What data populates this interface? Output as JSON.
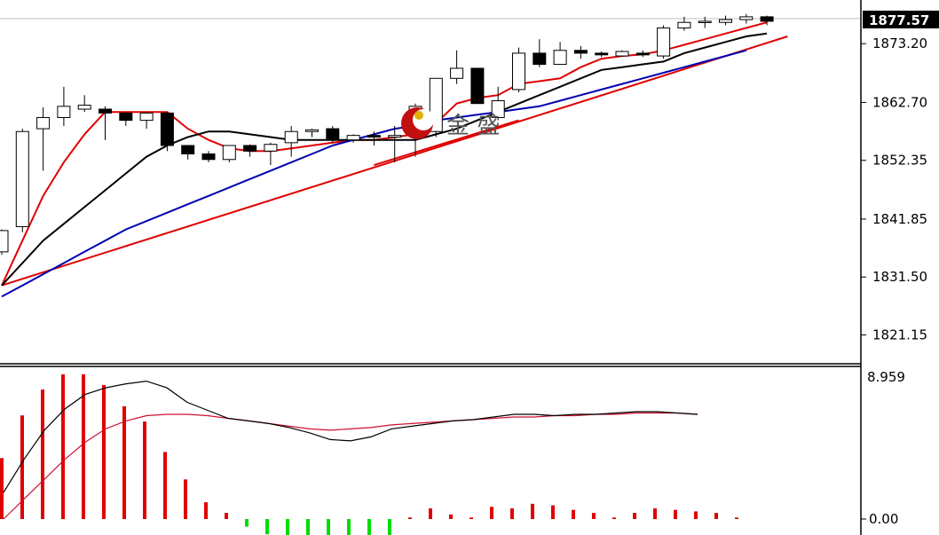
{
  "chart_data": [
    {
      "type": "candlestick",
      "y_ticks": [
        1873.2,
        1862.7,
        1852.35,
        1841.85,
        1831.5,
        1821.15
      ],
      "ylim": [
        1816.0,
        1881.0
      ],
      "last_price": 1877.57,
      "last_price_label": "1877.57",
      "candles": [
        {
          "o": 1836.0,
          "h": 1840.0,
          "c": 1839.8,
          "l": 1835.5
        },
        {
          "o": 1840.5,
          "h": 1858.0,
          "c": 1857.5,
          "l": 1839.5
        },
        {
          "o": 1858.0,
          "h": 1861.8,
          "c": 1860.0,
          "l": 1850.5
        },
        {
          "o": 1860.0,
          "h": 1865.5,
          "c": 1862.0,
          "l": 1858.5
        },
        {
          "o": 1861.5,
          "h": 1864.0,
          "c": 1862.2,
          "l": 1861.0
        },
        {
          "o": 1861.5,
          "h": 1862.0,
          "c": 1860.8,
          "l": 1856.0
        },
        {
          "o": 1860.8,
          "h": 1861.0,
          "c": 1859.5,
          "l": 1858.5
        },
        {
          "o": 1859.5,
          "h": 1861.0,
          "c": 1860.8,
          "l": 1858.0
        },
        {
          "o": 1860.8,
          "h": 1861.0,
          "c": 1855.0,
          "l": 1854.0
        },
        {
          "o": 1855.0,
          "h": 1855.0,
          "c": 1853.5,
          "l": 1852.5
        },
        {
          "o": 1853.5,
          "h": 1854.0,
          "c": 1852.5,
          "l": 1852.0
        },
        {
          "o": 1852.5,
          "h": 1855.0,
          "c": 1855.0,
          "l": 1852.0
        },
        {
          "o": 1855.0,
          "h": 1855.2,
          "c": 1854.0,
          "l": 1853.0
        },
        {
          "o": 1854.0,
          "h": 1855.5,
          "c": 1855.2,
          "l": 1851.5
        },
        {
          "o": 1855.5,
          "h": 1858.5,
          "c": 1857.5,
          "l": 1853.0
        },
        {
          "o": 1857.5,
          "h": 1858.0,
          "c": 1857.8,
          "l": 1856.5
        },
        {
          "o": 1858.0,
          "h": 1858.5,
          "c": 1856.0,
          "l": 1855.5
        },
        {
          "o": 1856.0,
          "h": 1857.0,
          "c": 1856.8,
          "l": 1855.5
        },
        {
          "o": 1856.8,
          "h": 1857.5,
          "c": 1856.5,
          "l": 1855.0
        },
        {
          "o": 1856.5,
          "h": 1858.5,
          "c": 1856.8,
          "l": 1852.0
        },
        {
          "o": 1857.0,
          "h": 1862.5,
          "c": 1862.0,
          "l": 1853.0
        },
        {
          "o": 1857.5,
          "h": 1867.0,
          "c": 1867.0,
          "l": 1856.5
        },
        {
          "o": 1867.0,
          "h": 1872.0,
          "c": 1868.8,
          "l": 1866.0
        },
        {
          "o": 1868.8,
          "h": 1868.8,
          "c": 1862.5,
          "l": 1862.5
        },
        {
          "o": 1860.0,
          "h": 1865.5,
          "c": 1863.0,
          "l": 1859.5
        },
        {
          "o": 1865.0,
          "h": 1872.5,
          "c": 1871.5,
          "l": 1864.5
        },
        {
          "o": 1871.5,
          "h": 1874.0,
          "c": 1869.5,
          "l": 1869.0
        },
        {
          "o": 1869.5,
          "h": 1873.5,
          "c": 1872.0,
          "l": 1869.5
        },
        {
          "o": 1872.0,
          "h": 1872.8,
          "c": 1871.5,
          "l": 1870.5
        },
        {
          "o": 1871.5,
          "h": 1871.8,
          "c": 1871.2,
          "l": 1870.8
        },
        {
          "o": 1871.0,
          "h": 1872.0,
          "c": 1871.8,
          "l": 1871.0
        },
        {
          "o": 1871.5,
          "h": 1872.0,
          "c": 1871.2,
          "l": 1870.8
        },
        {
          "o": 1871.0,
          "h": 1876.5,
          "c": 1876.0,
          "l": 1870.5
        },
        {
          "o": 1876.0,
          "h": 1878.0,
          "c": 1877.0,
          "l": 1875.5
        },
        {
          "o": 1877.0,
          "h": 1878.0,
          "c": 1877.2,
          "l": 1876.0
        },
        {
          "o": 1877.0,
          "h": 1878.2,
          "c": 1877.5,
          "l": 1876.5
        },
        {
          "o": 1877.5,
          "h": 1878.5,
          "c": 1878.0,
          "l": 1876.8
        },
        {
          "o": 1878.0,
          "h": 1878.2,
          "c": 1877.2,
          "l": 1876.5
        }
      ],
      "series": [
        {
          "color": "#e00000",
          "values": [
            1830.0,
            1838.0,
            1846.0,
            1852.0,
            1857.0,
            1861.0,
            1861.0,
            1861.0,
            1861.0,
            1858.0,
            1856.0,
            1854.5,
            1854.0,
            1854.0,
            1854.5,
            1855.0,
            1855.5,
            1856.0,
            1856.0,
            1856.5,
            1857.0,
            1859.0,
            1862.5,
            1863.5,
            1864.0,
            1866.0,
            1866.5,
            1867.0,
            1869.0,
            1870.5,
            1871.0,
            1871.3,
            1872.0,
            1873.0,
            1874.0,
            1875.0,
            1876.0,
            1877.0
          ]
        },
        {
          "color": "#000000",
          "values": [
            1830.0,
            1834.0,
            1838.0,
            1841.0,
            1844.0,
            1847.0,
            1850.0,
            1853.0,
            1855.0,
            1856.5,
            1857.5,
            1857.5,
            1857.0,
            1856.5,
            1856.0,
            1856.0,
            1856.0,
            1856.0,
            1856.0,
            1856.0,
            1856.0,
            1857.0,
            1858.0,
            1859.5,
            1861.0,
            1862.5,
            1864.0,
            1865.5,
            1867.0,
            1868.5,
            1869.0,
            1869.5,
            1870.0,
            1871.5,
            1872.5,
            1873.5,
            1874.5,
            1875.0
          ]
        },
        {
          "color": "#0000b0",
          "values": [
            1828.0,
            1830.0,
            1832.0,
            1834.0,
            1836.0,
            1838.0,
            1840.0,
            1841.5,
            1843.0,
            1844.5,
            1846.0,
            1847.5,
            1849.0,
            1850.5,
            1852.0,
            1853.5,
            1855.0,
            1856.0,
            1857.0,
            1858.0,
            1858.5,
            1859.5,
            1860.0,
            1860.5,
            1861.0,
            1861.5,
            1862.0,
            1863.0,
            1864.0,
            1865.0,
            1866.0,
            1867.0,
            1868.0,
            1869.0,
            1870.0,
            1871.0,
            1872.0
          ]
        }
      ],
      "trend_lines": [
        {
          "color": "#e00000",
          "from": {
            "bar": 0,
            "price": 1830.0
          },
          "to": {
            "bar": 38,
            "price": 1874.5
          }
        },
        {
          "color": "#e00000",
          "from": {
            "bar": 18,
            "price": 1851.5
          },
          "to": {
            "bar": 25,
            "price": 1859.5
          }
        }
      ],
      "watermark": "金 盛"
    },
    {
      "type": "macd",
      "y_ticks_label": [
        "8.959",
        "0.00"
      ],
      "ylim": [
        -1.2,
        9.9
      ],
      "hist": [
        4.0,
        6.8,
        8.5,
        9.5,
        9.5,
        8.8,
        7.4,
        6.4,
        4.4,
        2.6,
        1.1,
        0.4,
        -0.5,
        -1.0,
        -1.1,
        -1.1,
        -1.1,
        -1.1,
        -1.1,
        -1.1,
        0.1,
        0.7,
        0.3,
        0.1,
        0.8,
        0.7,
        1.0,
        0.9,
        0.6,
        0.4,
        0.1,
        0.4,
        0.7,
        0.6,
        0.5,
        0.4,
        0.1
      ],
      "macd": [
        2.0,
        4.5,
        6.7,
        8.3,
        9.4,
        9.9,
        10.2,
        10.4,
        9.9,
        8.8,
        8.2,
        7.6,
        7.4,
        7.2,
        6.9,
        6.5,
        6.0,
        5.9,
        6.2,
        6.8,
        7.0,
        7.2,
        7.4,
        7.5,
        7.7,
        7.9,
        7.9,
        7.8,
        7.9,
        7.9,
        8.0,
        8.1,
        8.1,
        8.0,
        7.9
      ],
      "signal": [
        0.0,
        1.5,
        3.0,
        4.5,
        5.8,
        6.8,
        7.4,
        7.8,
        7.9,
        7.9,
        7.8,
        7.6,
        7.4,
        7.2,
        7.0,
        6.8,
        6.7,
        6.8,
        6.9,
        7.1,
        7.2,
        7.3,
        7.4,
        7.5,
        7.6,
        7.7,
        7.7,
        7.8,
        7.8,
        7.9,
        7.9,
        8.0,
        8.0,
        8.0,
        7.9
      ]
    }
  ]
}
